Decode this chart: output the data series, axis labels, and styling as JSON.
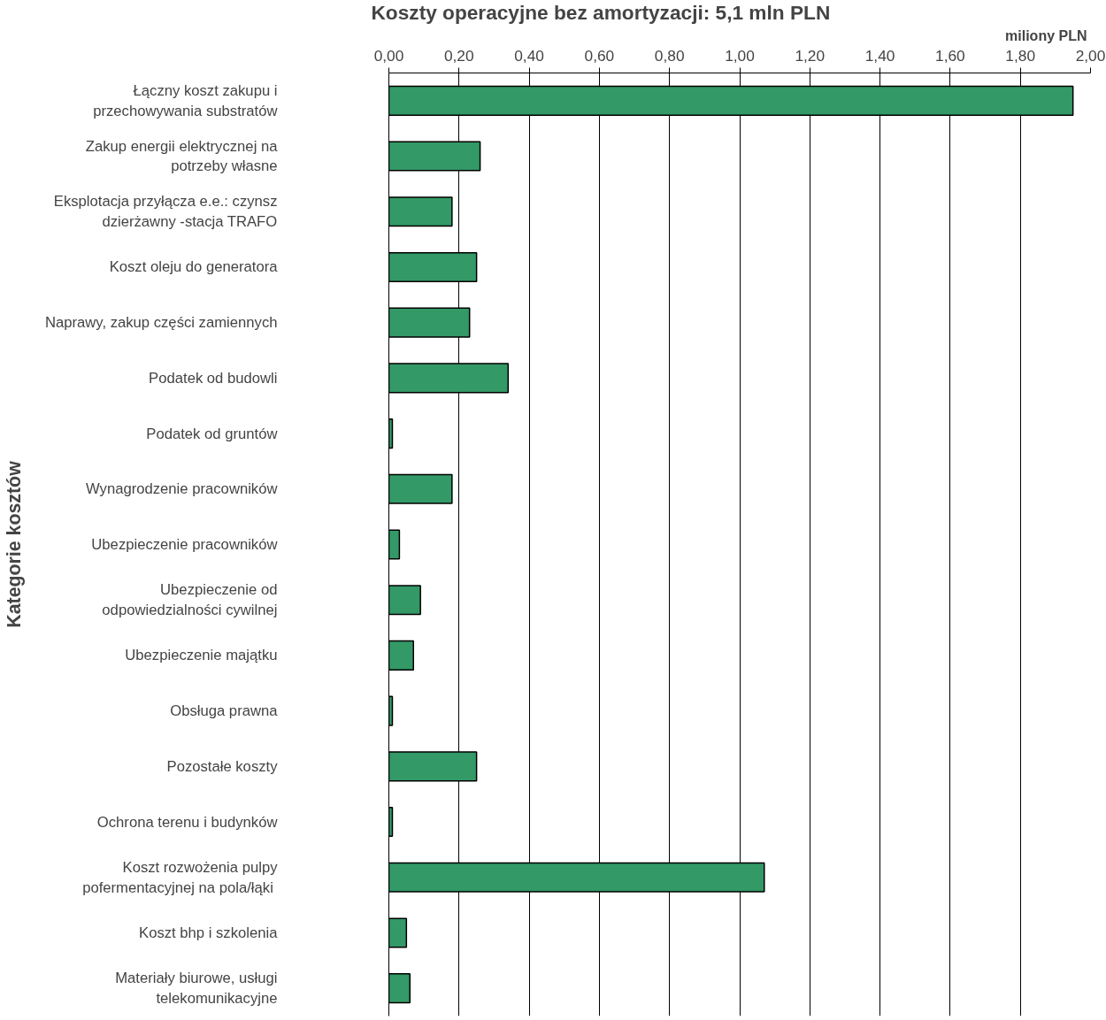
{
  "chart_data": {
    "type": "bar",
    "orientation": "horizontal",
    "title": "Koszty operacyjne bez amortyzacji: 5,1 mln PLN",
    "xlabel": "miliony PLN",
    "ylabel": "Kategorie kosztów",
    "categories": [
      "Łączny koszt zakupu i\nprzechowywania substratów",
      "Zakup energii elektrycznej na\npotrzeby własne",
      "Eksplotacja przyłącza e.e.: czynsz\ndzierżawny -stacja TRAFO",
      "Koszt oleju do generatora",
      "Naprawy, zakup części zamiennych",
      "Podatek od budowli",
      "Podatek od gruntów",
      "Wynagrodzenie pracowników",
      "Ubezpieczenie pracowników",
      "Ubezpieczenie od\nodpowiedzialności cywilnej",
      "Ubezpieczenie majątku",
      "Obsługa prawna",
      "Pozostałe koszty",
      "Ochrona terenu i budynków",
      "Koszt rozwożenia pulpy\npofermentacyjnej  na pola/łąki",
      "Koszt bhp i szkolenia",
      "Materiały biurowe, usługi\ntelekomunikacyjne"
    ],
    "values": [
      1.95,
      0.26,
      0.18,
      0.25,
      0.23,
      0.34,
      0.01,
      0.18,
      0.03,
      0.09,
      0.07,
      0.01,
      0.25,
      0.01,
      1.07,
      0.05,
      0.06
    ],
    "color": "#339966",
    "xlim": [
      0,
      2
    ],
    "xticks": [
      {
        "value": 0,
        "label": "0,00"
      },
      {
        "value": 0.2,
        "label": "0,20"
      },
      {
        "value": 0.4,
        "label": "0,40"
      },
      {
        "value": 0.6,
        "label": "0,60"
      },
      {
        "value": 0.8,
        "label": "0,80"
      },
      {
        "value": 1.0,
        "label": "1,00"
      },
      {
        "value": 1.2,
        "label": "1,20"
      },
      {
        "value": 1.4,
        "label": "1,40"
      },
      {
        "value": 1.6,
        "label": "1,60"
      },
      {
        "value": 1.8,
        "label": "1,80"
      },
      {
        "value": 2.0,
        "label": "2,00"
      }
    ],
    "grid": "x"
  }
}
